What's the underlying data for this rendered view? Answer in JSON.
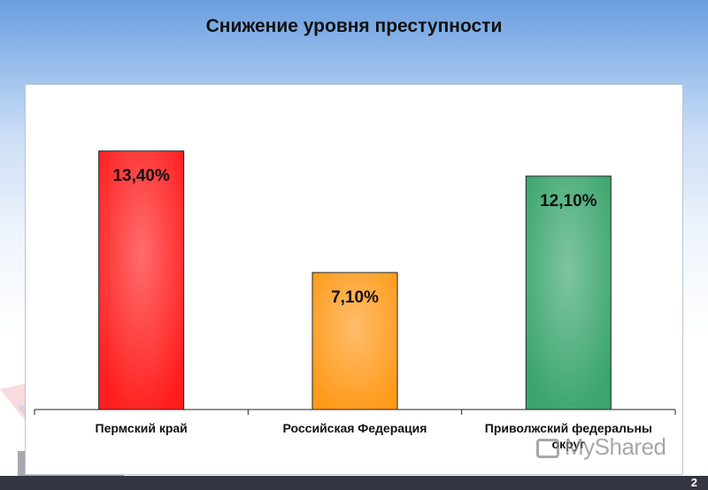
{
  "slide": {
    "title": "Снижение уровня преступности",
    "page_number": "2",
    "watermark": "MyShared"
  },
  "chart_data": {
    "type": "bar",
    "title": "Снижение уровня преступности",
    "xlabel": "",
    "ylabel": "",
    "ylim": [
      0,
      16
    ],
    "grid": false,
    "legend": "none",
    "categories": [
      "Пермский край",
      "Российская Федерация",
      "Приволжский федеральны округ"
    ],
    "category_lines": [
      [
        "Пермский край"
      ],
      [
        "Российская Федерация"
      ],
      [
        "Приволжский федеральны",
        "округ"
      ]
    ],
    "values": [
      13.4,
      7.1,
      12.1
    ],
    "value_labels": [
      "13,40%",
      "7,10%",
      "12,10%"
    ],
    "colors": [
      "#ff1e1e",
      "#ff9a1a",
      "#3aa56c"
    ]
  }
}
